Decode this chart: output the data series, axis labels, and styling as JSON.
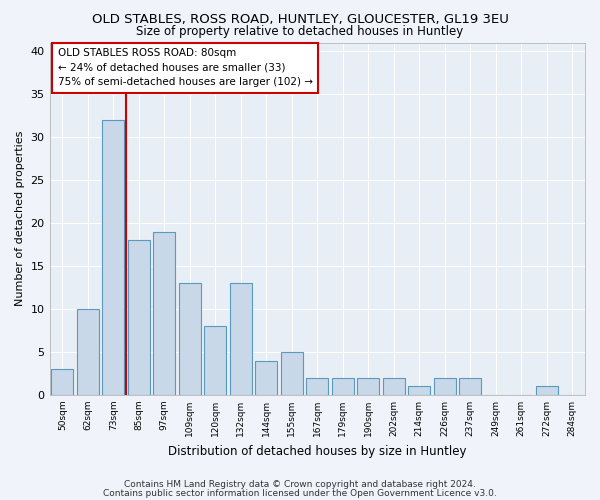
{
  "title": "OLD STABLES, ROSS ROAD, HUNTLEY, GLOUCESTER, GL19 3EU",
  "subtitle": "Size of property relative to detached houses in Huntley",
  "xlabel": "Distribution of detached houses by size in Huntley",
  "ylabel": "Number of detached properties",
  "categories": [
    "50sqm",
    "62sqm",
    "73sqm",
    "85sqm",
    "97sqm",
    "109sqm",
    "120sqm",
    "132sqm",
    "144sqm",
    "155sqm",
    "167sqm",
    "179sqm",
    "190sqm",
    "202sqm",
    "214sqm",
    "226sqm",
    "237sqm",
    "249sqm",
    "261sqm",
    "272sqm",
    "284sqm"
  ],
  "values": [
    3,
    10,
    32,
    18,
    19,
    13,
    8,
    13,
    4,
    5,
    2,
    2,
    2,
    2,
    1,
    2,
    2,
    0,
    0,
    1,
    0
  ],
  "bar_color": "#c8d8e8",
  "bar_edge_color": "#5a9abf",
  "bar_linewidth": 0.8,
  "vline_x": 2.5,
  "vline_color": "#cc0000",
  "vline_linewidth": 1.5,
  "annotation_text": "OLD STABLES ROSS ROAD: 80sqm\n← 24% of detached houses are smaller (33)\n75% of semi-detached houses are larger (102) →",
  "bg_color": "#e8eef5",
  "grid_color": "#ffffff",
  "fig_bg_color": "#f0f4fa",
  "ylim": [
    0,
    41
  ],
  "yticks": [
    0,
    5,
    10,
    15,
    20,
    25,
    30,
    35,
    40
  ],
  "title_fontsize": 9.5,
  "subtitle_fontsize": 8.5,
  "annotation_fontsize": 7.5,
  "footer_fontsize": 6.5,
  "ylabel_fontsize": 8,
  "xlabel_fontsize": 8.5,
  "xtick_fontsize": 6.5,
  "ytick_fontsize": 8,
  "footer_line1": "Contains HM Land Registry data © Crown copyright and database right 2024.",
  "footer_line2": "Contains public sector information licensed under the Open Government Licence v3.0."
}
